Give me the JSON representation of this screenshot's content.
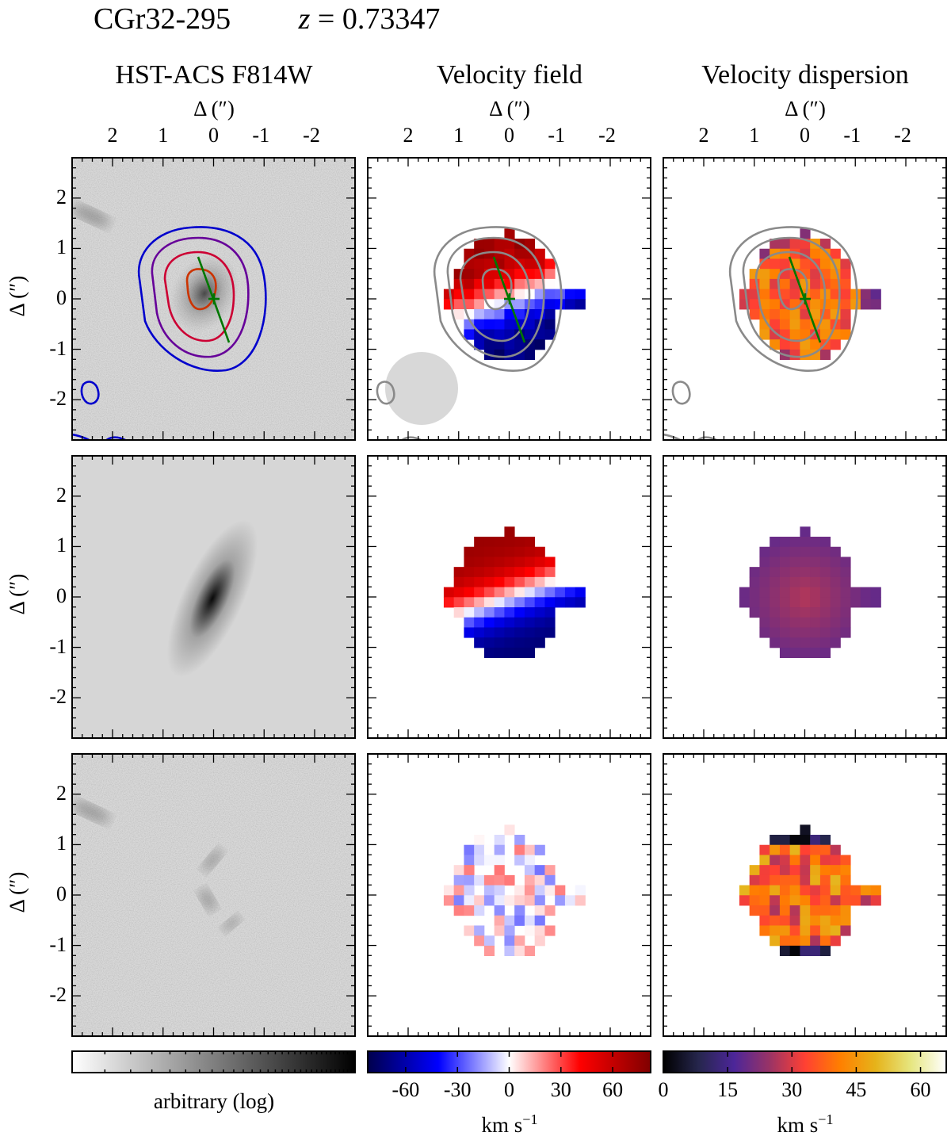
{
  "figure": {
    "object_name": "CGr32-295",
    "redshift_label": "z = 0.73347",
    "redshift_var": "z",
    "redshift_eq": " = 0.73347"
  },
  "columns": [
    {
      "title": "HST-ACS F814W",
      "xlabel": "Δ (″)"
    },
    {
      "title": "Velocity field",
      "xlabel": "Δ (″)"
    },
    {
      "title": "Velocity dispersion",
      "xlabel": "Δ (″)"
    }
  ],
  "axes": {
    "x_ticks": [
      "2",
      "1",
      "0",
      "-1",
      "-2"
    ],
    "y_ticks": [
      "2",
      "1",
      "0",
      "-1",
      "-2"
    ],
    "y_label": "Δ (″)",
    "range": [
      -2.8,
      2.8
    ]
  },
  "colorbars": [
    {
      "label": "arbitrary (log)",
      "ticks": [],
      "cmap": "gray"
    },
    {
      "label": "km s−1",
      "ticks": [
        "-60",
        "-30",
        "0",
        "30",
        "60"
      ],
      "tick_values": [
        -60,
        -30,
        0,
        30,
        60
      ],
      "range": [
        -82,
        82
      ],
      "cmap": "seismic"
    },
    {
      "label": "km s−1",
      "ticks": [
        "0",
        "15",
        "30",
        "45",
        "60"
      ],
      "tick_values": [
        0,
        15,
        30,
        45,
        60
      ],
      "range": [
        0,
        66
      ],
      "cmap": "CMRmap"
    }
  ],
  "chart_data": {
    "type": "heatmap",
    "panels": [
      {
        "row": "observed",
        "column": "image",
        "content": "HST-ACS F814W image with contours and kinematic axis"
      },
      {
        "row": "observed",
        "column": "velocity",
        "range": [
          -82,
          82
        ]
      },
      {
        "row": "observed",
        "column": "dispersion",
        "range": [
          0,
          66
        ]
      },
      {
        "row": "model",
        "column": "image"
      },
      {
        "row": "model",
        "column": "velocity"
      },
      {
        "row": "model",
        "column": "dispersion"
      },
      {
        "row": "residual",
        "column": "image"
      },
      {
        "row": "residual",
        "column": "velocity"
      },
      {
        "row": "residual",
        "column": "dispersion"
      }
    ],
    "kinematic_axis_endpoints": [
      [
        0.3,
        0.85
      ],
      [
        -0.3,
        -0.85
      ]
    ],
    "center": [
      0,
      0
    ]
  },
  "colors": {
    "contour_outer": "#0000cc",
    "contour_2": "#660099",
    "contour_3": "#cc0033",
    "contour_inner": "#cc3300",
    "axis_line": "#007700",
    "contour_gray": "#8a8a8a",
    "psf": "#d8d8d8"
  }
}
